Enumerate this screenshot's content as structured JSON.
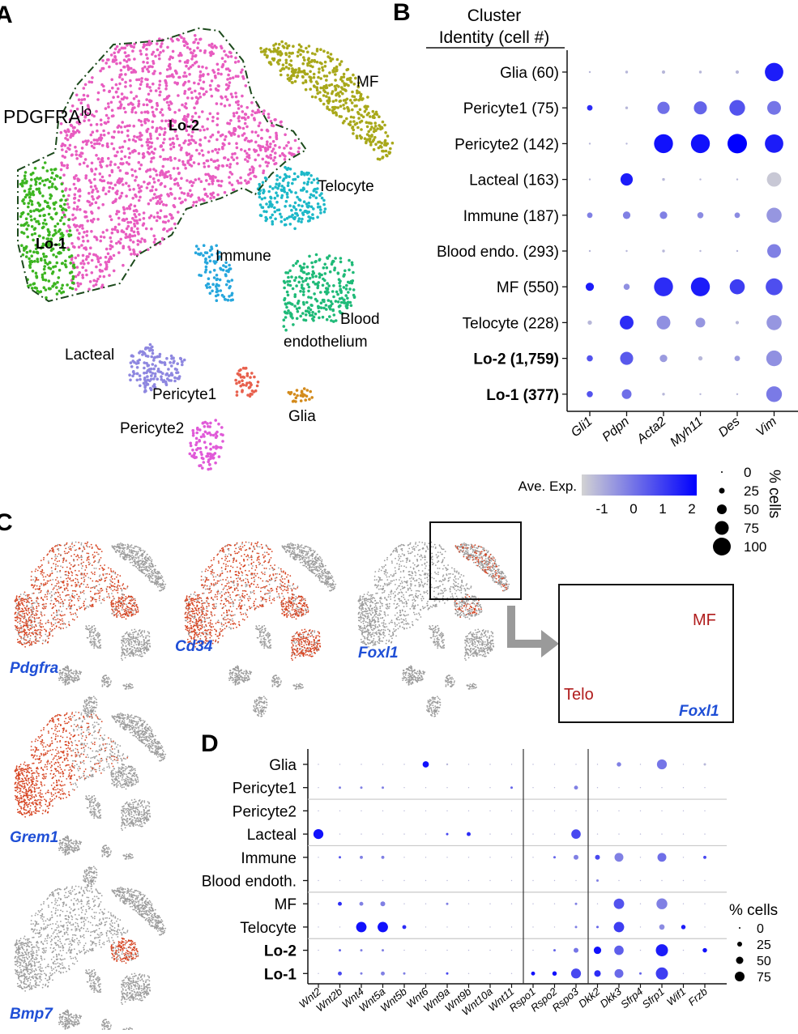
{
  "panel_letters": {
    "a": "A",
    "b": "B",
    "c": "C",
    "d": "D"
  },
  "panel_a": {
    "cluster_labels": {
      "pdgfra_lo": "PDGFRA",
      "pdgfra_lo_sup": "lo",
      "lo2": "Lo-2",
      "lo1": "Lo-1",
      "mf": "MF",
      "telocyte": "Telocyte",
      "immune": "Immune",
      "blood_l1": "Blood",
      "blood_l2": "endothelium",
      "lacteal": "Lacteal",
      "pericyte1": "Pericyte1",
      "glia": "Glia",
      "pericyte2": "Pericyte2"
    },
    "colors": {
      "lo2": "#e85cc0",
      "lo1": "#3cb521",
      "mf": "#a8a81a",
      "telocyte": "#1db8c8",
      "immune": "#27a7dd",
      "blood": "#1fba78",
      "lacteal": "#8e87e0",
      "pericyte1": "#e8604d",
      "glia": "#d38a1b",
      "pericyte2": "#e05ad8"
    }
  },
  "panel_b": {
    "header_l1": "Cluster",
    "header_l2": "Identity (cell #)",
    "legend_exp_title": "Ave. Exp.",
    "legend_exp_ticks": [
      "-1",
      "0",
      "1",
      "2"
    ],
    "legend_pct_title": "% cells",
    "legend_pct_ticks": [
      "0",
      "25",
      "50",
      "75",
      "100"
    ]
  },
  "panel_c": {
    "genes": [
      "Pdgfra",
      "Cd34",
      "Foxl1",
      "Grem1",
      "Bmp7"
    ],
    "inset_labels": {
      "mf": "MF",
      "telo": "Telo",
      "gene": "Foxl1"
    }
  },
  "panel_d": {
    "legend_title": "% cells",
    "legend_ticks": [
      "0",
      "25",
      "50",
      "75"
    ]
  },
  "chart_data": [
    {
      "type": "scatter",
      "rows": [
        "Glia (60)",
        "Pericyte1 (75)",
        "Pericyte2 (142)",
        "Lacteal (163)",
        "Immune (187)",
        "Blood endo. (293)",
        "MF (550)",
        "Telocyte (228)",
        "Lo-2 (1,759)",
        "Lo-1 (377)"
      ],
      "bold_rows": [
        "Lo-2 (1,759)",
        "Lo-1 (377)"
      ],
      "columns": [
        "Gli1",
        "Pdpn",
        "Acta2",
        "Myh11",
        "Des",
        "Vim"
      ],
      "pct": [
        [
          1,
          2,
          3,
          2,
          3,
          90
        ],
        [
          8,
          2,
          40,
          45,
          65,
          50
        ],
        [
          1,
          1,
          95,
          95,
          100,
          90
        ],
        [
          1,
          40,
          2,
          1,
          1,
          55
        ],
        [
          8,
          15,
          15,
          10,
          8,
          60
        ],
        [
          1,
          1,
          2,
          1,
          1,
          50
        ],
        [
          18,
          10,
          95,
          95,
          60,
          75
        ],
        [
          5,
          50,
          50,
          25,
          3,
          60
        ],
        [
          10,
          45,
          15,
          5,
          8,
          65
        ],
        [
          10,
          25,
          2,
          1,
          1,
          65
        ]
      ],
      "expr": [
        [
          -1,
          -1,
          -1,
          -1,
          -1,
          1.8
        ],
        [
          1.5,
          -1,
          0.3,
          0.5,
          0.8,
          0.2
        ],
        [
          -1,
          -1,
          2,
          2,
          2.3,
          1.8
        ],
        [
          -1,
          1.8,
          -1,
          -1,
          -1,
          -1.3
        ],
        [
          0,
          0,
          0,
          -0.2,
          -0.2,
          -0.4
        ],
        [
          -1,
          -1,
          -1,
          -1,
          -1,
          0
        ],
        [
          1.8,
          -0.3,
          1.5,
          1.8,
          1.2,
          0.9
        ],
        [
          -1,
          1.5,
          -0.3,
          -0.4,
          -1,
          -0.4
        ],
        [
          0.8,
          0.7,
          -0.5,
          -1,
          -0.5,
          -0.3
        ],
        [
          0.8,
          0.3,
          -1,
          -1,
          -1,
          0.1
        ]
      ],
      "color_scale": [
        "#d3d3d3",
        "#0000ff"
      ],
      "exp_range": [
        -1.5,
        2.3
      ]
    },
    {
      "type": "scatter",
      "rows": [
        "Glia",
        "Pericyte1",
        "Pericyte2",
        "Lacteal",
        "Immune",
        "Blood endoth.",
        "MF",
        "Telocyte",
        "Lo-2",
        "Lo-1"
      ],
      "bold_rows": [
        "Lo-2",
        "Lo-1"
      ],
      "columns": [
        "Wnt2",
        "Wnt2b",
        "Wnt4",
        "Wnt5a",
        "Wnt5b",
        "Wnt6",
        "Wnt9a",
        "Wnt9b",
        "Wnt10a",
        "Wnt11",
        "Rspo1",
        "Rspo2",
        "Rspo3",
        "Dkk2",
        "Dkk3",
        "Sfrp4",
        "Sfrp1",
        "Wif1",
        "Frzb"
      ],
      "pct": [
        [
          0,
          0,
          0,
          0,
          0,
          20,
          2,
          0,
          0,
          0,
          0,
          0,
          0,
          0,
          10,
          0,
          50,
          0,
          3
        ],
        [
          0,
          3,
          3,
          3,
          0,
          0,
          0,
          0,
          0,
          3,
          0,
          0,
          8,
          0,
          0,
          0,
          0,
          0,
          0
        ],
        [
          0,
          0,
          0,
          0,
          0,
          0,
          0,
          0,
          0,
          0,
          0,
          0,
          0,
          0,
          0,
          0,
          0,
          0,
          0
        ],
        [
          50,
          0,
          0,
          0,
          0,
          0,
          3,
          8,
          0,
          0,
          0,
          0,
          45,
          0,
          0,
          0,
          0,
          0,
          0
        ],
        [
          0,
          3,
          5,
          5,
          0,
          0,
          0,
          0,
          0,
          0,
          0,
          3,
          12,
          12,
          40,
          0,
          40,
          0,
          5
        ],
        [
          0,
          0,
          0,
          0,
          0,
          0,
          0,
          0,
          0,
          0,
          0,
          0,
          0,
          3,
          0,
          0,
          0,
          0,
          0
        ],
        [
          0,
          8,
          8,
          12,
          0,
          0,
          3,
          0,
          0,
          0,
          0,
          0,
          3,
          0,
          55,
          0,
          60,
          0,
          0
        ],
        [
          0,
          0,
          55,
          55,
          8,
          0,
          0,
          0,
          0,
          0,
          0,
          0,
          3,
          3,
          55,
          0,
          15,
          10,
          0
        ],
        [
          0,
          3,
          3,
          3,
          0,
          0,
          0,
          0,
          0,
          0,
          0,
          3,
          12,
          28,
          45,
          0,
          75,
          0,
          10
        ],
        [
          0,
          8,
          3,
          8,
          3,
          0,
          3,
          0,
          0,
          0,
          8,
          10,
          50,
          22,
          40,
          3,
          75,
          0,
          0
        ]
      ],
      "expr": [
        [
          -1,
          -1,
          -1,
          -1,
          -1,
          2,
          -1,
          -1,
          -1,
          -1,
          -1,
          -1,
          -1,
          -1,
          0,
          -1,
          0.2,
          -1,
          -1
        ],
        [
          -1,
          0,
          0,
          0,
          -1,
          -1,
          -1,
          -1,
          -1,
          0.5,
          -1,
          -1,
          0,
          -1,
          -1,
          -1,
          -1,
          -1,
          -1
        ],
        [
          -1,
          -1,
          -1,
          -1,
          -1,
          -1,
          -1,
          -1,
          -1,
          -1,
          -1,
          -1,
          -1,
          -1,
          -1,
          -1,
          -1,
          -1,
          -1
        ],
        [
          2,
          -1,
          -1,
          -1,
          -1,
          -1,
          1,
          1.5,
          -1,
          -1,
          -1,
          -1,
          1,
          -1,
          -1,
          -1,
          -1,
          -1,
          -1
        ],
        [
          -1,
          0.8,
          0,
          0,
          -1,
          -1,
          -1,
          -1,
          -1,
          -1,
          -1,
          0.5,
          0,
          1,
          0,
          -1,
          0.3,
          -1,
          1
        ],
        [
          -1,
          -1,
          -1,
          -1,
          -1,
          -1,
          -1,
          -1,
          -1,
          -1,
          -1,
          -1,
          -1,
          0,
          -1,
          -1,
          -1,
          -1,
          -1
        ],
        [
          -1,
          1.5,
          0,
          0,
          -1,
          -1,
          0,
          -1,
          -1,
          -1,
          -1,
          -1,
          0,
          -1,
          0.8,
          -1,
          0,
          -1,
          -1
        ],
        [
          -1,
          -1,
          2,
          2,
          1.5,
          -1,
          -1,
          -1,
          -1,
          -1,
          -1,
          -1,
          0,
          0.5,
          1.2,
          -1,
          -0.2,
          1.8,
          -1
        ],
        [
          -1,
          0.5,
          0,
          0,
          -1,
          -1,
          -1,
          -1,
          -1,
          -1,
          -1,
          0.5,
          0.2,
          2,
          0.6,
          -1,
          1.8,
          -1,
          2
        ],
        [
          -1,
          1,
          0,
          0,
          0,
          -1,
          1,
          -1,
          -1,
          -1,
          2,
          2,
          1,
          1.5,
          0.4,
          0.5,
          1.2,
          -1,
          -1
        ]
      ],
      "color_scale": [
        "#d3d3d3",
        "#0000ff"
      ],
      "exp_range": [
        -1.5,
        2.3
      ]
    }
  ]
}
